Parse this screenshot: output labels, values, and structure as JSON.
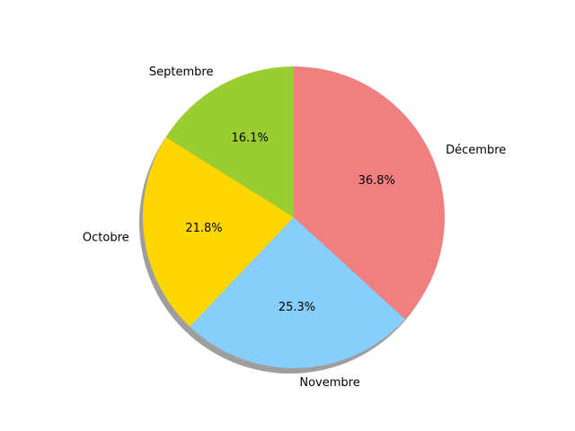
{
  "chart_data": {
    "type": "pie",
    "categories": [
      "Septembre",
      "Octobre",
      "Novembre",
      "Décembre"
    ],
    "values": [
      16.1,
      21.8,
      25.3,
      36.8
    ],
    "labels": [
      "16.1%",
      "21.8%",
      "25.3%",
      "36.8%"
    ],
    "colors": [
      "#9acd32",
      "#ffd700",
      "#87cefa",
      "#f08080"
    ],
    "start_angle_deg": 90,
    "direction": "counterclockwise",
    "shadow": true,
    "legend": "none"
  }
}
